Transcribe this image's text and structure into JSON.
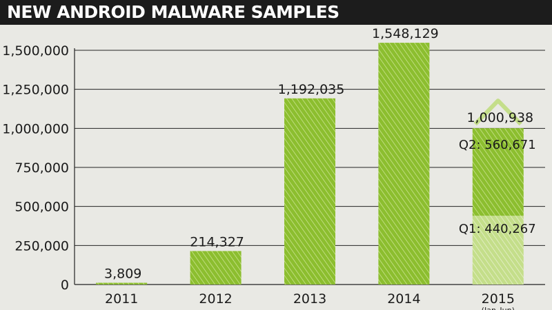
{
  "title": "NEW ANDROID MALWARE SAMPLES",
  "colors": {
    "bar": "#8cbe2f",
    "bar_light": "#c4de8a",
    "title_bg": "#1c1c1c",
    "background": "#e9e9e4"
  },
  "chart_data": {
    "type": "bar",
    "title": "NEW ANDROID MALWARE SAMPLES",
    "categories": [
      "2011",
      "2012",
      "2013",
      "2014",
      "2015"
    ],
    "category_sublabels": [
      "",
      "",
      "",
      "",
      "(Jan–Jun)"
    ],
    "values": [
      3809,
      214327,
      1192035,
      1548129,
      1000938
    ],
    "value_labels": [
      "3,809",
      "214,327",
      "1,192,035",
      "1,548,129",
      "1,000,938"
    ],
    "stacked_2015": [
      {
        "name": "Q1",
        "value": 440267,
        "label": "Q1: 440,267"
      },
      {
        "name": "Q2",
        "value": 560671,
        "label": "Q2: 560,671"
      }
    ],
    "yticks": [
      0,
      250000,
      500000,
      750000,
      1000000,
      1250000,
      1500000
    ],
    "ytick_labels": [
      "0",
      "250,000",
      "500,000",
      "750,000",
      "1,000,000",
      "1,250,000",
      "1,500,000"
    ],
    "ylim": [
      0,
      1600000
    ],
    "grid": true,
    "legend": "none"
  }
}
